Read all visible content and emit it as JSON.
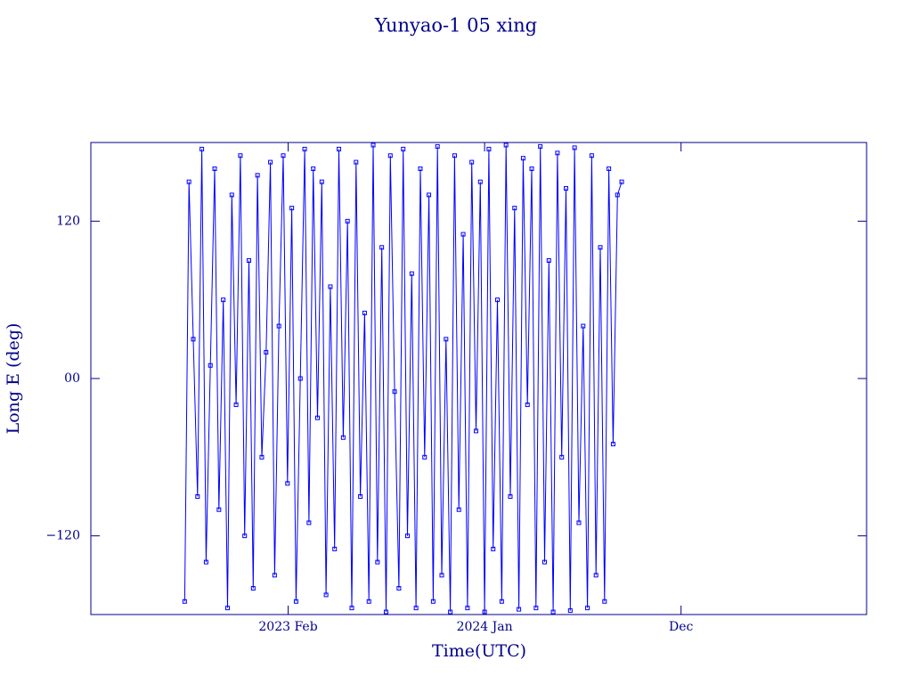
{
  "chart_data": {
    "type": "line",
    "title": "Yunyao-1 05 xing",
    "x_label": "Time(UTC)",
    "y_label": "Long E (deg)",
    "xlim": [
      2022.162,
      2025.783
    ],
    "xticks": [
      {
        "value": 2023.083,
        "label": "2023 Feb"
      },
      {
        "value": 2024.0,
        "label": "2024 Jan"
      },
      {
        "value": 2024.917,
        "label": "Dec"
      }
    ],
    "ylim": [
      -180,
      180
    ],
    "yticks": [
      {
        "value": -120,
        "label": "−120"
      },
      {
        "value": 0,
        "label": "00"
      },
      120
    ],
    "series": [
      {
        "color": "#0000ff",
        "x": [
          2022.6,
          2022.62,
          2022.64,
          2022.66,
          2022.68,
          2022.7,
          2022.72,
          2022.74,
          2022.76,
          2022.78,
          2022.8,
          2022.82,
          2022.84,
          2022.86,
          2022.88,
          2022.9,
          2022.92,
          2022.94,
          2022.96,
          2022.98,
          2023.0,
          2023.02,
          2023.04,
          2023.06,
          2023.08,
          2023.1,
          2023.12,
          2023.14,
          2023.16,
          2023.18,
          2023.2,
          2023.22,
          2023.24,
          2023.26,
          2023.28,
          2023.3,
          2023.32,
          2023.34,
          2023.36,
          2023.38,
          2023.4,
          2023.42,
          2023.44,
          2023.46,
          2023.48,
          2023.5,
          2023.52,
          2023.54,
          2023.56,
          2023.58,
          2023.6,
          2023.62,
          2023.64,
          2023.66,
          2023.68,
          2023.7,
          2023.72,
          2023.74,
          2023.76,
          2023.78,
          2023.8,
          2023.82,
          2023.84,
          2023.86,
          2023.88,
          2023.9,
          2023.92,
          2023.94,
          2023.96,
          2023.98,
          2024.0,
          2024.02,
          2024.04,
          2024.06,
          2024.08,
          2024.1,
          2024.12,
          2024.14,
          2024.16,
          2024.18,
          2024.2,
          2024.22,
          2024.24,
          2024.26,
          2024.28,
          2024.3,
          2024.32,
          2024.34,
          2024.36,
          2024.38,
          2024.4,
          2024.42,
          2024.44,
          2024.46,
          2024.48,
          2024.5,
          2024.52,
          2024.54,
          2024.56,
          2024.58,
          2024.6,
          2024.62,
          2024.64
        ],
        "values": [
          -170,
          150,
          30,
          -90,
          175,
          -140,
          10,
          160,
          -100,
          60,
          -175,
          140,
          -20,
          170,
          -120,
          90,
          -160,
          155,
          -60,
          20,
          165,
          -150,
          40,
          170,
          -80,
          130,
          -170,
          0,
          175,
          -110,
          160,
          -30,
          150,
          -165,
          70,
          -130,
          175,
          -45,
          120,
          -175,
          165,
          -90,
          50,
          -170,
          178,
          -140,
          100,
          -178,
          170,
          -10,
          -160,
          175,
          -120,
          80,
          -175,
          160,
          -60,
          140,
          -170,
          177,
          -150,
          30,
          -178,
          170,
          -100,
          110,
          -175,
          165,
          -40,
          150,
          -178,
          175,
          -130,
          60,
          -170,
          178,
          -90,
          130,
          -176,
          168,
          -20,
          160,
          -175,
          177,
          -140,
          90,
          -178,
          172,
          -60,
          145,
          -177,
          176,
          -110,
          40,
          -175,
          170,
          -150,
          100,
          -170,
          160,
          -50,
          140,
          150
        ]
      }
    ]
  }
}
